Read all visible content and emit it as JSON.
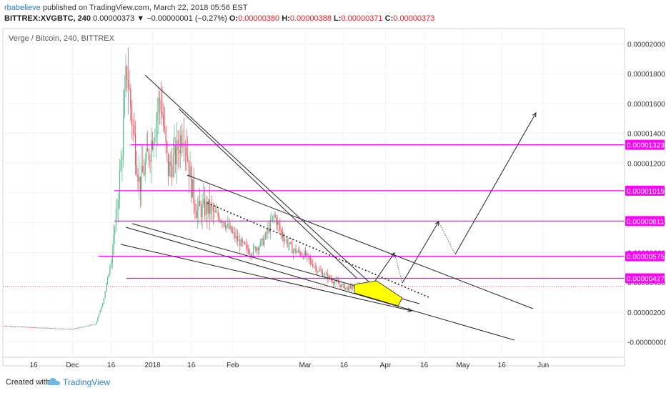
{
  "header": {
    "author": "rbabelieve",
    "published": "published on TradingView.com, March 22, 2018 05:56 EST",
    "symbol_line": "BITTREX:XVGBTC, 240",
    "last": "0.00000373",
    "change": "▼ −0.00000001 (−0.27%)",
    "o_label": "O:",
    "o": "0.00000380",
    "h_label": "H:",
    "h": "0.00000388",
    "l_label": "L:",
    "l": "0.00000371",
    "c_label": "C:",
    "c": "0.00000373"
  },
  "footer": {
    "created": "Created with",
    "brand": "TradingView"
  },
  "chart_data": {
    "type": "candlestick",
    "title": "Verge / Bitcoin, 240, BITTREX",
    "y_ticks": [
      2e-05,
      1.8e-05,
      1.6e-05,
      1.4e-05,
      1.2e-05,
      1e-05,
      8e-06,
      6e-06,
      4e-06,
      2e-06,
      0
    ],
    "y_tick_labels": [
      "0.00002000",
      "0.00001800",
      "0.00001600",
      "0.00001400",
      "0.00001200",
      "0.00001000",
      "0.00000800",
      "0.00000600",
      "0.00000400",
      "0.00000200",
      "-0.00000000"
    ],
    "x_tick_labels": [
      "16",
      "Dec",
      "16",
      "2018",
      "16",
      "Feb",
      "Mar",
      "16",
      "Apr",
      "16",
      "May",
      "16",
      "Jun"
    ],
    "x_tick_dates": [
      "2017-11-16",
      "2017-12-01",
      "2017-12-16",
      "2018-01-01",
      "2018-01-16",
      "2018-02-01",
      "2018-03-01",
      "2018-03-16",
      "2018-04-01",
      "2018-04-16",
      "2018-05-01",
      "2018-05-16",
      "2018-06-01"
    ],
    "price_levels": [
      {
        "value": 1.323e-05,
        "label": "0.00001323",
        "color": "#ff00ff"
      },
      {
        "value": 1.015e-05,
        "label": "0.00001015",
        "color": "#ff00ff"
      },
      {
        "value": 8.11e-06,
        "label": "0.00000811",
        "color": "#ff00ff"
      },
      {
        "value": 5.75e-06,
        "label": "0.00000575",
        "color": "#ff00ff"
      },
      {
        "value": 4.27e-06,
        "label": "0.00000427",
        "color": "#ff00ff"
      }
    ],
    "last_price": 3.73e-06,
    "price_path": [
      [
        "2017-11-01",
        1.12e-06
      ],
      [
        "2017-11-15",
        9.8e-07
      ],
      [
        "2017-12-01",
        8.5e-07
      ],
      [
        "2017-12-10",
        1.2e-06
      ],
      [
        "2017-12-13",
        2.8e-06
      ],
      [
        "2017-12-16",
        5.5e-06
      ],
      [
        "2017-12-18",
        8.5e-06
      ],
      [
        "2017-12-20",
        1.25e-05
      ],
      [
        "2017-12-22",
        1.85e-05
      ],
      [
        "2017-12-24",
        1.5e-05
      ],
      [
        "2017-12-27",
        1.05e-05
      ],
      [
        "2017-12-31",
        1.3e-05
      ],
      [
        "2018-01-04",
        1.65e-05
      ],
      [
        "2018-01-07",
        1.15e-05
      ],
      [
        "2018-01-10",
        1.25e-05
      ],
      [
        "2018-01-13",
        1.45e-05
      ],
      [
        "2018-01-16",
        1.05e-05
      ],
      [
        "2018-01-18",
        8.8e-06
      ],
      [
        "2018-01-22",
        9e-06
      ],
      [
        "2018-01-28",
        8.2e-06
      ],
      [
        "2018-02-03",
        6.8e-06
      ],
      [
        "2018-02-08",
        6e-06
      ],
      [
        "2018-02-13",
        6.8e-06
      ],
      [
        "2018-02-17",
        8.5e-06
      ],
      [
        "2018-02-20",
        7.2e-06
      ],
      [
        "2018-02-24",
        6.2e-06
      ],
      [
        "2018-03-01",
        5.8e-06
      ],
      [
        "2018-03-06",
        4.8e-06
      ],
      [
        "2018-03-11",
        4.2e-06
      ],
      [
        "2018-03-17",
        3.6e-06
      ],
      [
        "2018-03-22",
        3.73e-06
      ]
    ],
    "colors": {
      "up": "#53b987",
      "down": "#eb4d5c",
      "trend": "#222222",
      "level": "#ff00ff",
      "highlight": "#ffff00",
      "last_price": "#c33"
    }
  }
}
